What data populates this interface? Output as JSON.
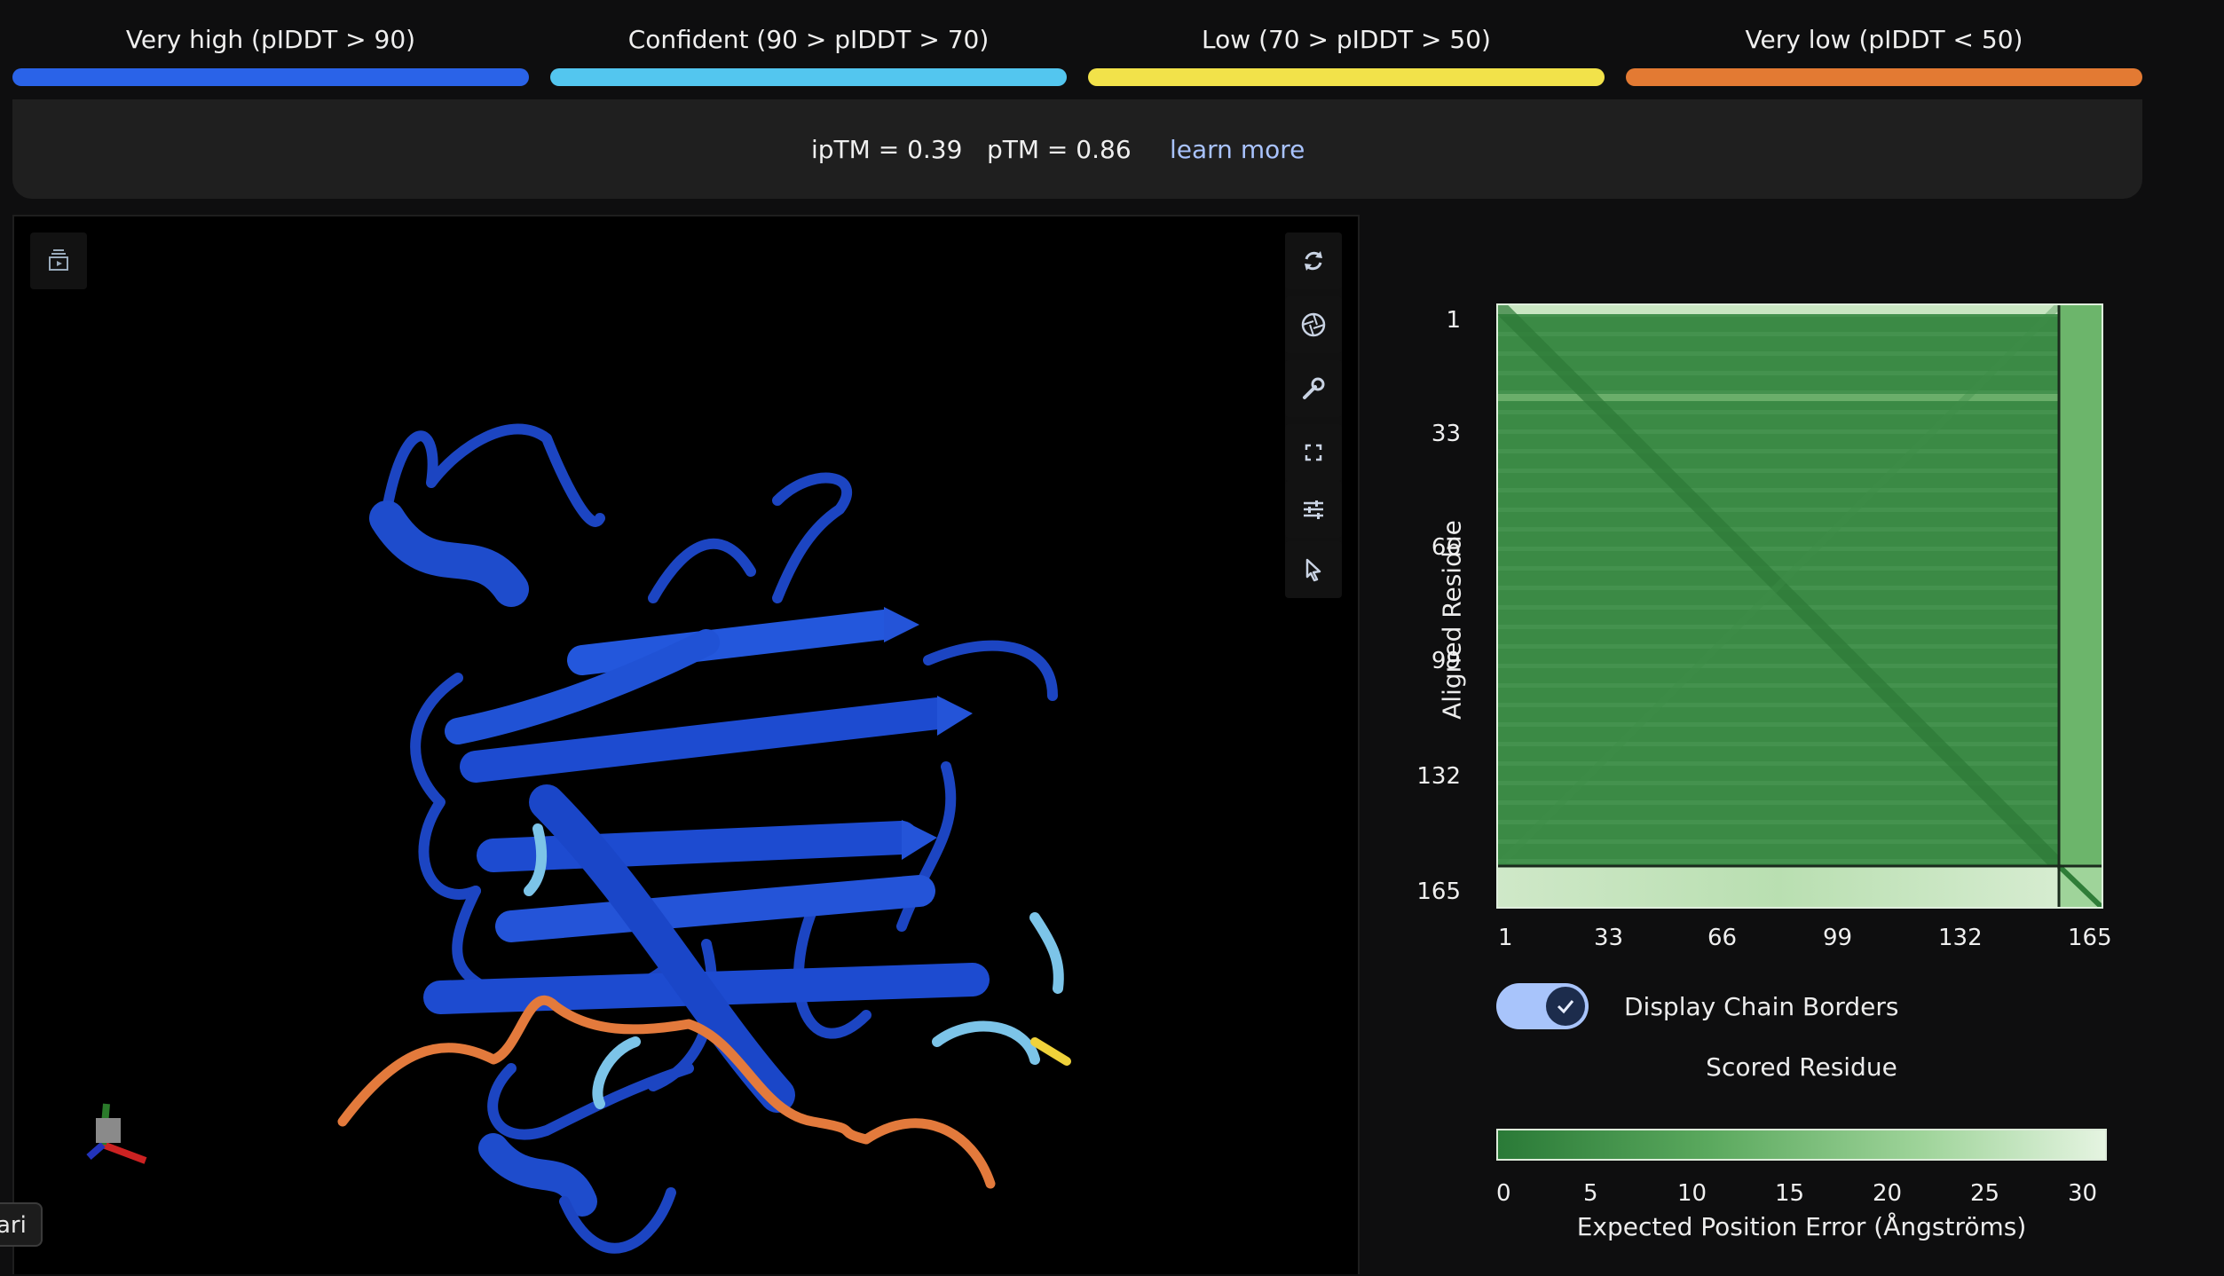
{
  "plddt_legend": [
    {
      "label": "Very high (pIDDT > 90)",
      "color": "#2a63e8"
    },
    {
      "label": "Confident (90 > pIDDT > 70)",
      "color": "#53c6ef"
    },
    {
      "label": "Low (70 > pIDDT > 50)",
      "color": "#f2e24a"
    },
    {
      "label": "Very low (pIDDT < 50)",
      "color": "#e37a33"
    }
  ],
  "metrics": {
    "iptm": "ipTM = 0.39",
    "ptm": "pTM = 0.86",
    "learn_more": "learn more"
  },
  "viewer": {
    "toolbar_icons": [
      "rotate-icon",
      "camera-shutter-icon",
      "wrench-icon",
      "fullscreen-icon",
      "sliders-icon",
      "cursor-icon"
    ],
    "top_left_icon": "animation-panel-icon",
    "tooltip_text": "ari"
  },
  "pae_plot": {
    "y_axis_title": "Aligned Residue",
    "x_axis_title": "Scored Residue",
    "y_ticks": [
      "1",
      "33",
      "66",
      "99",
      "132",
      "165"
    ],
    "x_ticks": [
      "1",
      "33",
      "66",
      "99",
      "132",
      "165"
    ],
    "toggle_label": "Display Chain Borders",
    "toggle_on": true,
    "colorbar_ticks": [
      "0",
      "5",
      "10",
      "15",
      "20",
      "25",
      "30"
    ],
    "colorbar_title": "Expected Position Error (Ångströms)",
    "colors": {
      "low_error": "#2a7a37",
      "high_error": "#e5f4e1"
    }
  }
}
